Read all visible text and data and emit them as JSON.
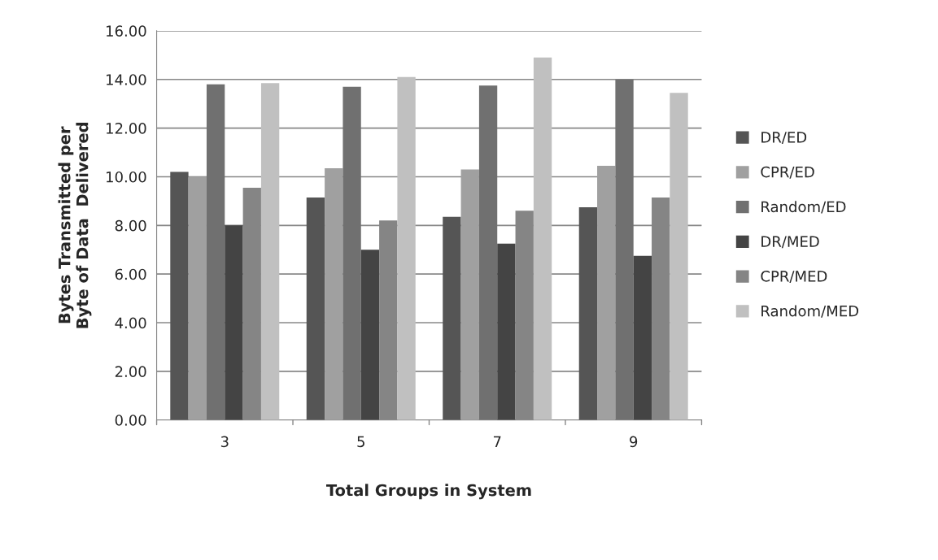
{
  "chart_data": {
    "type": "bar",
    "xlabel": "Total Groups in System",
    "ylabel": "Bytes Transmitted per\nByte of Data  Delivered",
    "categories": [
      "3",
      "5",
      "7",
      "9"
    ],
    "series": [
      {
        "name": "DR/ED",
        "color": "#555555",
        "values": [
          10.2,
          9.15,
          8.35,
          8.75
        ]
      },
      {
        "name": "CPR/ED",
        "color": "#a0a0a0",
        "values": [
          10.0,
          10.35,
          10.3,
          10.45
        ]
      },
      {
        "name": "Random/ED",
        "color": "#707070",
        "values": [
          13.8,
          13.7,
          13.75,
          14.0
        ]
      },
      {
        "name": "DR/MED",
        "color": "#444444",
        "values": [
          8.0,
          7.0,
          7.25,
          6.75
        ]
      },
      {
        "name": "CPR/MED",
        "color": "#858585",
        "values": [
          9.55,
          8.2,
          8.6,
          9.15
        ]
      },
      {
        "name": "Random/MED",
        "color": "#c0c0c0",
        "values": [
          13.85,
          14.1,
          14.9,
          13.45
        ]
      }
    ],
    "ylim": [
      0,
      16
    ],
    "yticks": [
      {
        "value": 0,
        "label": "0.00"
      },
      {
        "value": 2,
        "label": "2.00"
      },
      {
        "value": 4,
        "label": "4.00"
      },
      {
        "value": 6,
        "label": "6.00"
      },
      {
        "value": 8,
        "label": "8.00"
      },
      {
        "value": 10,
        "label": "10.00"
      },
      {
        "value": 12,
        "label": "12.00"
      },
      {
        "value": 14,
        "label": "14.00"
      },
      {
        "value": 16,
        "label": "16.00"
      }
    ],
    "grid": "y",
    "legend": "right"
  }
}
